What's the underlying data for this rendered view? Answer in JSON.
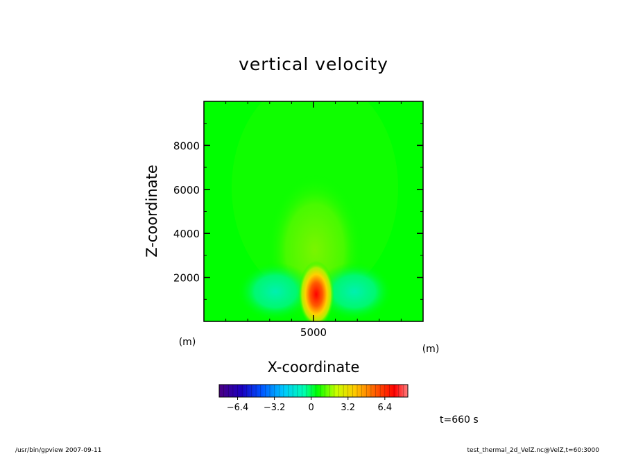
{
  "chart_data": {
    "type": "heatmap",
    "title": "vertical velocity",
    "xlabel": "X-coordinate",
    "ylabel": "Z-coordinate",
    "x_unit": "(m)",
    "y_unit": "(m)",
    "xlim": [
      0,
      10000
    ],
    "ylim": [
      0,
      10000
    ],
    "x_ticks": [
      5000
    ],
    "y_ticks": [
      2000,
      4000,
      6000,
      8000
    ],
    "x_tick_labels": [
      "5000"
    ],
    "y_tick_labels": [
      "2000",
      "4000",
      "6000",
      "8000"
    ],
    "colorbar": {
      "min": -8.0,
      "max": 8.4,
      "tick_values": [
        -6.4,
        -3.2,
        0,
        3.2,
        6.4
      ],
      "tick_labels": [
        "−6.4",
        "−3.2",
        "0",
        "3.2",
        "6.4"
      ]
    },
    "features": [
      {
        "kind": "updraft-max",
        "x": 5000,
        "z": 1200,
        "value": 8.0
      },
      {
        "kind": "downdraft",
        "x": 3000,
        "z": 1200,
        "value": -2.0
      },
      {
        "kind": "downdraft",
        "x": 7000,
        "z": 1200,
        "value": -2.0
      }
    ],
    "time_label": "t=660 s"
  },
  "footer": {
    "left": "/usr/bin/gpview   2007-09-11",
    "right": "test_thermal_2d_VelZ.nc@VelZ,t=60:3000"
  }
}
